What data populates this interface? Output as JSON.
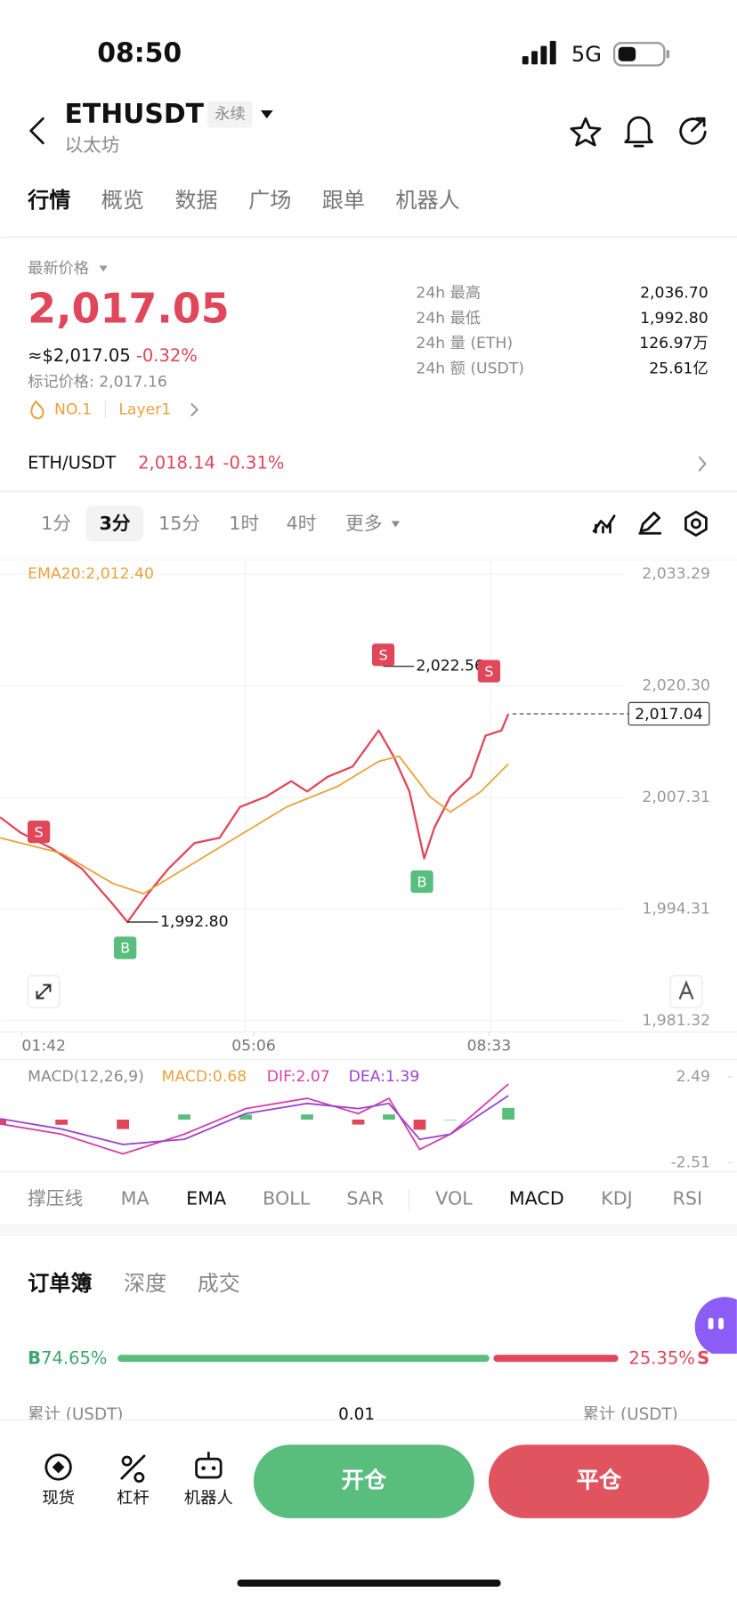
{
  "status_bar": {
    "time": "08:50",
    "network": "5G"
  },
  "header": {
    "symbol": "ETHUSDT",
    "tag": "永续",
    "name": "以太坊"
  },
  "tabs": [
    "行情",
    "概览",
    "数据",
    "广场",
    "跟单",
    "机器人"
  ],
  "price": {
    "label": "最新价格",
    "last": "2,017.05",
    "usd": "≈$2,017.05",
    "change": "-0.32%",
    "mark": "标记价格: 2,017.16",
    "rank": "NO.1",
    "sector": "Layer1"
  },
  "stats": [
    {
      "label": "24h  最高",
      "value": "2,036.70"
    },
    {
      "label": "24h  最低",
      "value": "1,992.80"
    },
    {
      "label": "24h  量 (ETH)",
      "value": "126.97万"
    },
    {
      "label": "24h  额 (USDT)",
      "value": "25.61亿"
    }
  ],
  "spot": {
    "pair": "ETH/USDT",
    "price": "2,018.14",
    "change": "-0.31%"
  },
  "intervals": [
    "1分",
    "3分",
    "15分",
    "1时",
    "4时",
    "更多"
  ],
  "chart_data": {
    "type": "line",
    "ema_label": "EMA20:2,012.40",
    "xlim": [
      83,
      731
    ],
    "xticks": [
      {
        "value": 102,
        "label": "01:42"
      },
      {
        "value": 306,
        "label": "05:06"
      },
      {
        "value": 513,
        "label": "08:33"
      }
    ],
    "ylim": [
      1981.32,
      2033.29
    ],
    "yticks": [
      {
        "value": 1981.32,
        "label": "1,981.32"
      },
      {
        "value": 1994.31,
        "label": "1,994.31"
      },
      {
        "value": 2007.31,
        "label": "2,007.31"
      },
      {
        "value": 2020.3,
        "label": "2,020.30"
      },
      {
        "value": 2033.29,
        "label": "2,033.29"
      }
    ],
    "grid": true,
    "series": [
      {
        "name": "price",
        "color": "#e0475a",
        "x": [
          83,
          101,
          128,
          155,
          182,
          195,
          213,
          231,
          254,
          276,
          294,
          317,
          339,
          353,
          371,
          393,
          416,
          429,
          443,
          456,
          465,
          479,
          497,
          510,
          524,
          530
        ],
        "values": [
          2005.0,
          2003.2,
          2001.4,
          1999.0,
          1994.9,
          1992.8,
          1996.1,
          1999.0,
          2002.0,
          2002.6,
          2006.2,
          2007.4,
          2009.2,
          2008.0,
          2009.7,
          2010.9,
          2015.1,
          2012.1,
          2008.0,
          2000.2,
          2003.8,
          2007.4,
          2009.7,
          2014.5,
          2015.1,
          2017.04
        ]
      },
      {
        "name": "EMA20",
        "color": "#e8a33d",
        "x": [
          83,
          137,
          182,
          209,
          245,
          290,
          335,
          380,
          416,
          434,
          461,
          479,
          506,
          530
        ],
        "values": [
          2002.6,
          2000.8,
          1997.3,
          1996.1,
          1999.0,
          2002.6,
          2006.2,
          2008.6,
          2011.5,
          2012.1,
          2007.4,
          2005.6,
          2008.0,
          2011.2
        ]
      }
    ],
    "current_price": {
      "value": 2017.04,
      "label": "2,017.04"
    },
    "annotations": [
      {
        "x": 420,
        "value": 2022.56,
        "label": "2,022.56"
      },
      {
        "x": 195,
        "value": 1992.8,
        "label": "1,992.80"
      }
    ],
    "signals": [
      {
        "x": 117,
        "value": 2003.3,
        "label": "S"
      },
      {
        "x": 420,
        "value": 2023.9,
        "label": "S"
      },
      {
        "x": 513,
        "value": 2022.0,
        "label": "S"
      },
      {
        "x": 193,
        "value": 1989.8,
        "label": "B"
      },
      {
        "x": 454,
        "value": 1997.5,
        "label": "B"
      }
    ],
    "macd": {
      "label": "MACD(12,26,9)",
      "macd_label": "MACD:0.68",
      "dif_label": "DIF:2.07",
      "dea_label": "DEA:1.39",
      "ylim": [
        -2.51,
        2.49
      ],
      "yticks": [
        2.49,
        -2.51
      ],
      "x": [
        83,
        137,
        191,
        245,
        299,
        353,
        398,
        425,
        452,
        479,
        530
      ],
      "series": [
        {
          "name": "DIF",
          "color": "#d63fa8",
          "values": [
            -0.25,
            -0.85,
            -2.0,
            -0.85,
            0.64,
            1.24,
            0.35,
            1.24,
            -1.74,
            -0.85,
            2.07
          ]
        },
        {
          "name": "DEA",
          "color": "#9a43d1",
          "values": [
            0.05,
            -0.55,
            -1.45,
            -1.15,
            0.35,
            0.94,
            0.64,
            0.94,
            -1.15,
            -0.85,
            1.39
          ]
        }
      ],
      "histogram": [
        -0.3,
        -0.3,
        -0.55,
        0.3,
        0.29,
        0.3,
        -0.29,
        0.3,
        -0.59,
        0,
        0.68
      ]
    }
  },
  "indicators": [
    "撑压线",
    "MA",
    "EMA",
    "BOLL",
    "SAR",
    "VOL",
    "MACD",
    "KDJ",
    "RSI"
  ],
  "orderbook": {
    "tabs": [
      "订单簿",
      "深度",
      "成交"
    ],
    "buy": {
      "label": "B",
      "value": 74.65,
      "value_label": "74.65%"
    },
    "sell": {
      "label": "S",
      "value": 25.35,
      "value_label": "25.35%"
    },
    "columns": [
      "累计 (USDT)",
      "0.01",
      "累计 (USDT)"
    ]
  },
  "bottom_nav": [
    "现货",
    "杠杆",
    "机器人"
  ],
  "actions": [
    "开仓",
    "平仓"
  ]
}
